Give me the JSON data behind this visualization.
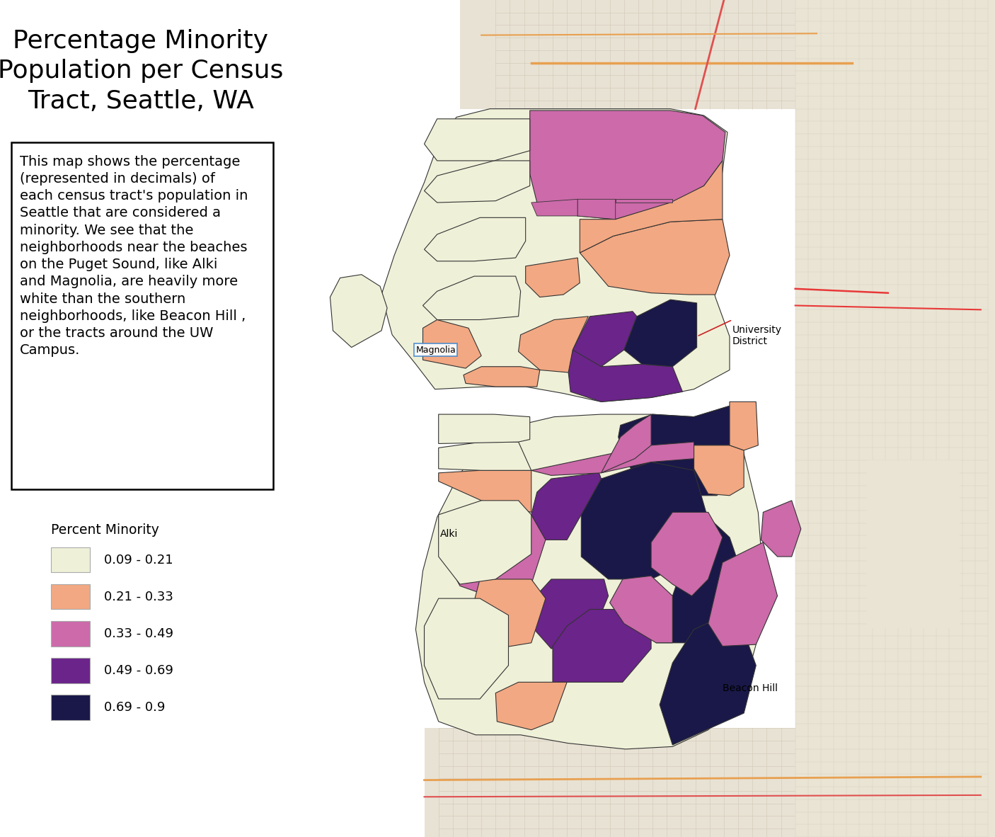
{
  "title": "Percentage Minority\nPopulation per Census\nTract, Seattle, WA",
  "title_fontsize": 26,
  "description_lines": "This map shows the percentage\n(represented in decimals) of\neach census tract's population in\nSeattle that are considered a\nminority. We see that the\nneighborhoods near the beaches\non the Puget Sound, like Alki\nand Magnolia, are heavily more\nwhite than the southern\nneighborhoods, like Beacon Hill ,\nor the tracts around the UW\nCampus.",
  "desc_fontsize": 14,
  "legend_title": "Percent Minority",
  "legend_entries": [
    {
      "color": "#eff0d8",
      "label": "0.09 - 0.21"
    },
    {
      "color": "#f2a882",
      "label": "0.21 - 0.33"
    },
    {
      "color": "#cc6aaa",
      "label": "0.33 - 0.49"
    },
    {
      "color": "#6b248a",
      "label": "0.49 - 0.69"
    },
    {
      "color": "#191848",
      "label": "0.69 - 0.9"
    }
  ],
  "background_color": "#ffffff",
  "water_color": "#b0d0e8",
  "street_map_color": "#f2ede0",
  "street_map_color2": "#e8e0d0",
  "label_magnolia": "Magnolia",
  "label_university": "University\nDistrict",
  "label_alki": "Alki",
  "label_beacon": "Beacon Hill"
}
